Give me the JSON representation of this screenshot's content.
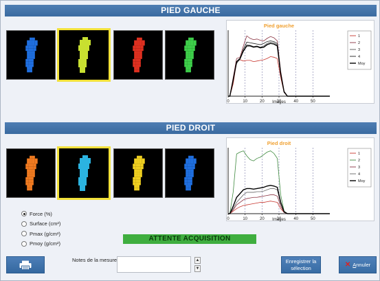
{
  "left": {
    "title": "PIED GAUCHE",
    "chart_title": "Pied gauche",
    "chart_data": {
      "type": "line",
      "title": "Pied gauche",
      "xlabel": "Images",
      "xlim": [
        0,
        60
      ],
      "xticks": [
        0,
        10,
        20,
        30,
        40,
        50
      ],
      "grid_vlines": [
        10,
        20,
        30,
        40,
        50
      ],
      "series": [
        {
          "name": "1",
          "color": "#c7352d",
          "x": [
            0,
            1,
            3,
            5,
            7,
            9,
            11,
            13,
            15,
            17,
            19,
            21,
            23,
            25,
            27,
            29,
            31,
            33,
            35,
            37,
            39,
            60
          ],
          "values": [
            0,
            0,
            20,
            55,
            58,
            56,
            57,
            57,
            55,
            56,
            57,
            58,
            60,
            63,
            62,
            60,
            30,
            6,
            0,
            0,
            0,
            0
          ]
        },
        {
          "name": "2",
          "color": "#8a3140",
          "x": [
            0,
            1,
            3,
            5,
            7,
            9,
            11,
            13,
            15,
            17,
            19,
            21,
            23,
            25,
            27,
            29,
            31,
            33,
            35,
            37,
            39,
            60
          ],
          "values": [
            0,
            0,
            30,
            60,
            62,
            80,
            96,
            92,
            90,
            91,
            89,
            88,
            92,
            95,
            93,
            88,
            40,
            8,
            0,
            0,
            0,
            0
          ]
        },
        {
          "name": "3",
          "color": "#555555",
          "x": [
            0,
            1,
            3,
            5,
            7,
            9,
            11,
            13,
            15,
            17,
            19,
            21,
            23,
            25,
            27,
            29,
            31,
            33,
            35,
            37,
            39,
            60
          ],
          "values": [
            0,
            0,
            25,
            55,
            58,
            72,
            82,
            81,
            79,
            80,
            78,
            80,
            84,
            86,
            85,
            82,
            36,
            6,
            0,
            0,
            0,
            0
          ]
        },
        {
          "name": "4",
          "color": "#1e1e1e",
          "x": [
            0,
            1,
            3,
            5,
            7,
            9,
            11,
            13,
            15,
            17,
            19,
            21,
            23,
            25,
            27,
            29,
            31,
            33,
            35,
            37,
            39,
            60
          ],
          "values": [
            0,
            0,
            28,
            52,
            60,
            75,
            86,
            85,
            84,
            83,
            82,
            84,
            87,
            88,
            87,
            84,
            38,
            7,
            0,
            0,
            0,
            0
          ]
        },
        {
          "name": "Moy",
          "color": "#000000",
          "x": [
            0,
            1,
            3,
            5,
            7,
            9,
            11,
            13,
            15,
            17,
            19,
            21,
            23,
            25,
            27,
            29,
            31,
            33,
            35,
            37,
            39,
            60
          ],
          "values": [
            0,
            0,
            26,
            55,
            60,
            72,
            80,
            80,
            78,
            79,
            77,
            78,
            82,
            84,
            83,
            80,
            36,
            7,
            0,
            0,
            0,
            0
          ]
        }
      ]
    }
  },
  "right": {
    "title": "PIED DROIT",
    "chart_title": "Pied droit",
    "chart_data": {
      "type": "line",
      "title": "Pied droit",
      "xlabel": "Images",
      "xlim": [
        0,
        60
      ],
      "xticks": [
        0,
        10,
        20,
        30,
        40,
        50
      ],
      "grid_vlines": [
        10,
        20,
        30,
        40,
        50
      ],
      "series": [
        {
          "name": "1",
          "color": "#c7352d",
          "x": [
            0,
            1,
            3,
            5,
            7,
            9,
            11,
            13,
            15,
            17,
            19,
            21,
            23,
            25,
            27,
            29,
            31,
            33,
            35,
            37,
            39,
            60
          ],
          "values": [
            0,
            0,
            4,
            8,
            11,
            13,
            14,
            15,
            16,
            17,
            18,
            18,
            19,
            20,
            19,
            18,
            8,
            2,
            0,
            0,
            0,
            0
          ]
        },
        {
          "name": "2",
          "color": "#3e8a3e",
          "x": [
            0,
            1,
            3,
            5,
            7,
            9,
            11,
            13,
            15,
            17,
            19,
            21,
            23,
            25,
            27,
            29,
            31,
            33,
            35,
            37,
            39,
            60
          ],
          "values": [
            0,
            0,
            35,
            95,
            98,
            100,
            92,
            86,
            84,
            88,
            90,
            94,
            98,
            100,
            96,
            88,
            30,
            4,
            0,
            0,
            0,
            0
          ]
        },
        {
          "name": "3",
          "color": "#8a3140",
          "x": [
            0,
            1,
            3,
            5,
            7,
            9,
            11,
            13,
            15,
            17,
            19,
            21,
            23,
            25,
            27,
            29,
            31,
            33,
            35,
            37,
            39,
            60
          ],
          "values": [
            0,
            0,
            6,
            14,
            18,
            22,
            24,
            25,
            26,
            26,
            27,
            28,
            29,
            30,
            30,
            28,
            12,
            2,
            0,
            0,
            0,
            0
          ]
        },
        {
          "name": "4",
          "color": "#666666",
          "x": [
            0,
            1,
            3,
            5,
            7,
            9,
            11,
            13,
            15,
            17,
            19,
            21,
            23,
            25,
            27,
            29,
            31,
            33,
            35,
            37,
            39,
            60
          ],
          "values": [
            0,
            0,
            8,
            18,
            24,
            30,
            34,
            34,
            34,
            35,
            35,
            36,
            38,
            40,
            40,
            38,
            16,
            3,
            0,
            0,
            0,
            0
          ]
        },
        {
          "name": "Moy",
          "color": "#000000",
          "x": [
            0,
            1,
            3,
            5,
            7,
            9,
            11,
            13,
            15,
            17,
            19,
            21,
            23,
            25,
            27,
            29,
            31,
            33,
            35,
            37,
            39,
            60
          ],
          "values": [
            0,
            0,
            12,
            26,
            32,
            38,
            40,
            40,
            39,
            40,
            41,
            42,
            44,
            45,
            44,
            42,
            18,
            3,
            0,
            0,
            0,
            0
          ]
        }
      ]
    }
  },
  "options": {
    "items": [
      {
        "label": "Force (%)",
        "checked": true
      },
      {
        "label": "Surface (cm²)",
        "checked": false
      },
      {
        "label": "Pmax (g/cm²)",
        "checked": false
      },
      {
        "label": "Pmoy (g/cm²)",
        "checked": false
      }
    ]
  },
  "status": {
    "text": "ATTENTE ACQUISITION",
    "color": "#3fae3f"
  },
  "footer": {
    "print_icon": "printer-icon",
    "notes_label": "Notes de la mesure",
    "notes_value": "",
    "save_label_1": "Enregistrer la",
    "save_label_2": "sélection",
    "cancel_label": "nnuler",
    "cancel_mnemonic": "A"
  },
  "colors": {
    "header": "#3a6aa0",
    "selected_border": "#f2e13a",
    "chart_title": "#f0a030"
  }
}
